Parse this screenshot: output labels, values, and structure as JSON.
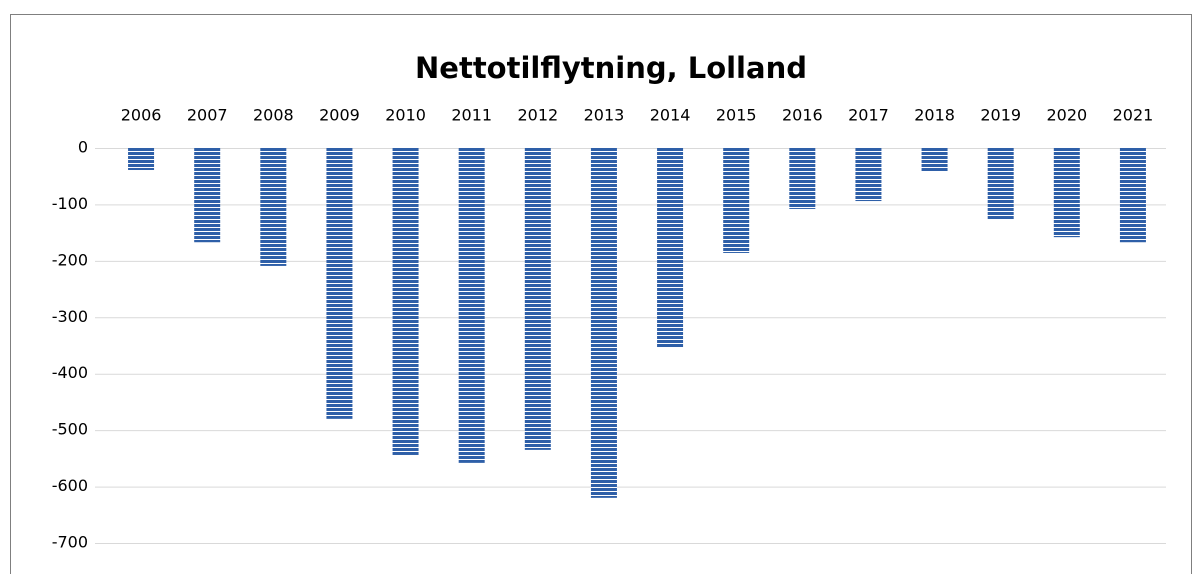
{
  "chart_data": {
    "type": "bar",
    "title": "Nettotilflytning, Lolland",
    "categories": [
      "2006",
      "2007",
      "2008",
      "2009",
      "2010",
      "2011",
      "2012",
      "2013",
      "2014",
      "2015",
      "2016",
      "2017",
      "2018",
      "2019",
      "2020",
      "2021"
    ],
    "values": [
      -39,
      -167,
      -209,
      -480,
      -544,
      -558,
      -535,
      -620,
      -353,
      -186,
      -108,
      -94,
      -41,
      -126,
      -158,
      -167
    ],
    "color": "#2e5fa8",
    "ylim": [
      -700,
      0
    ],
    "yticks": [
      0,
      -100,
      -200,
      -300,
      -400,
      -500,
      -600,
      -700
    ],
    "grid": true
  }
}
